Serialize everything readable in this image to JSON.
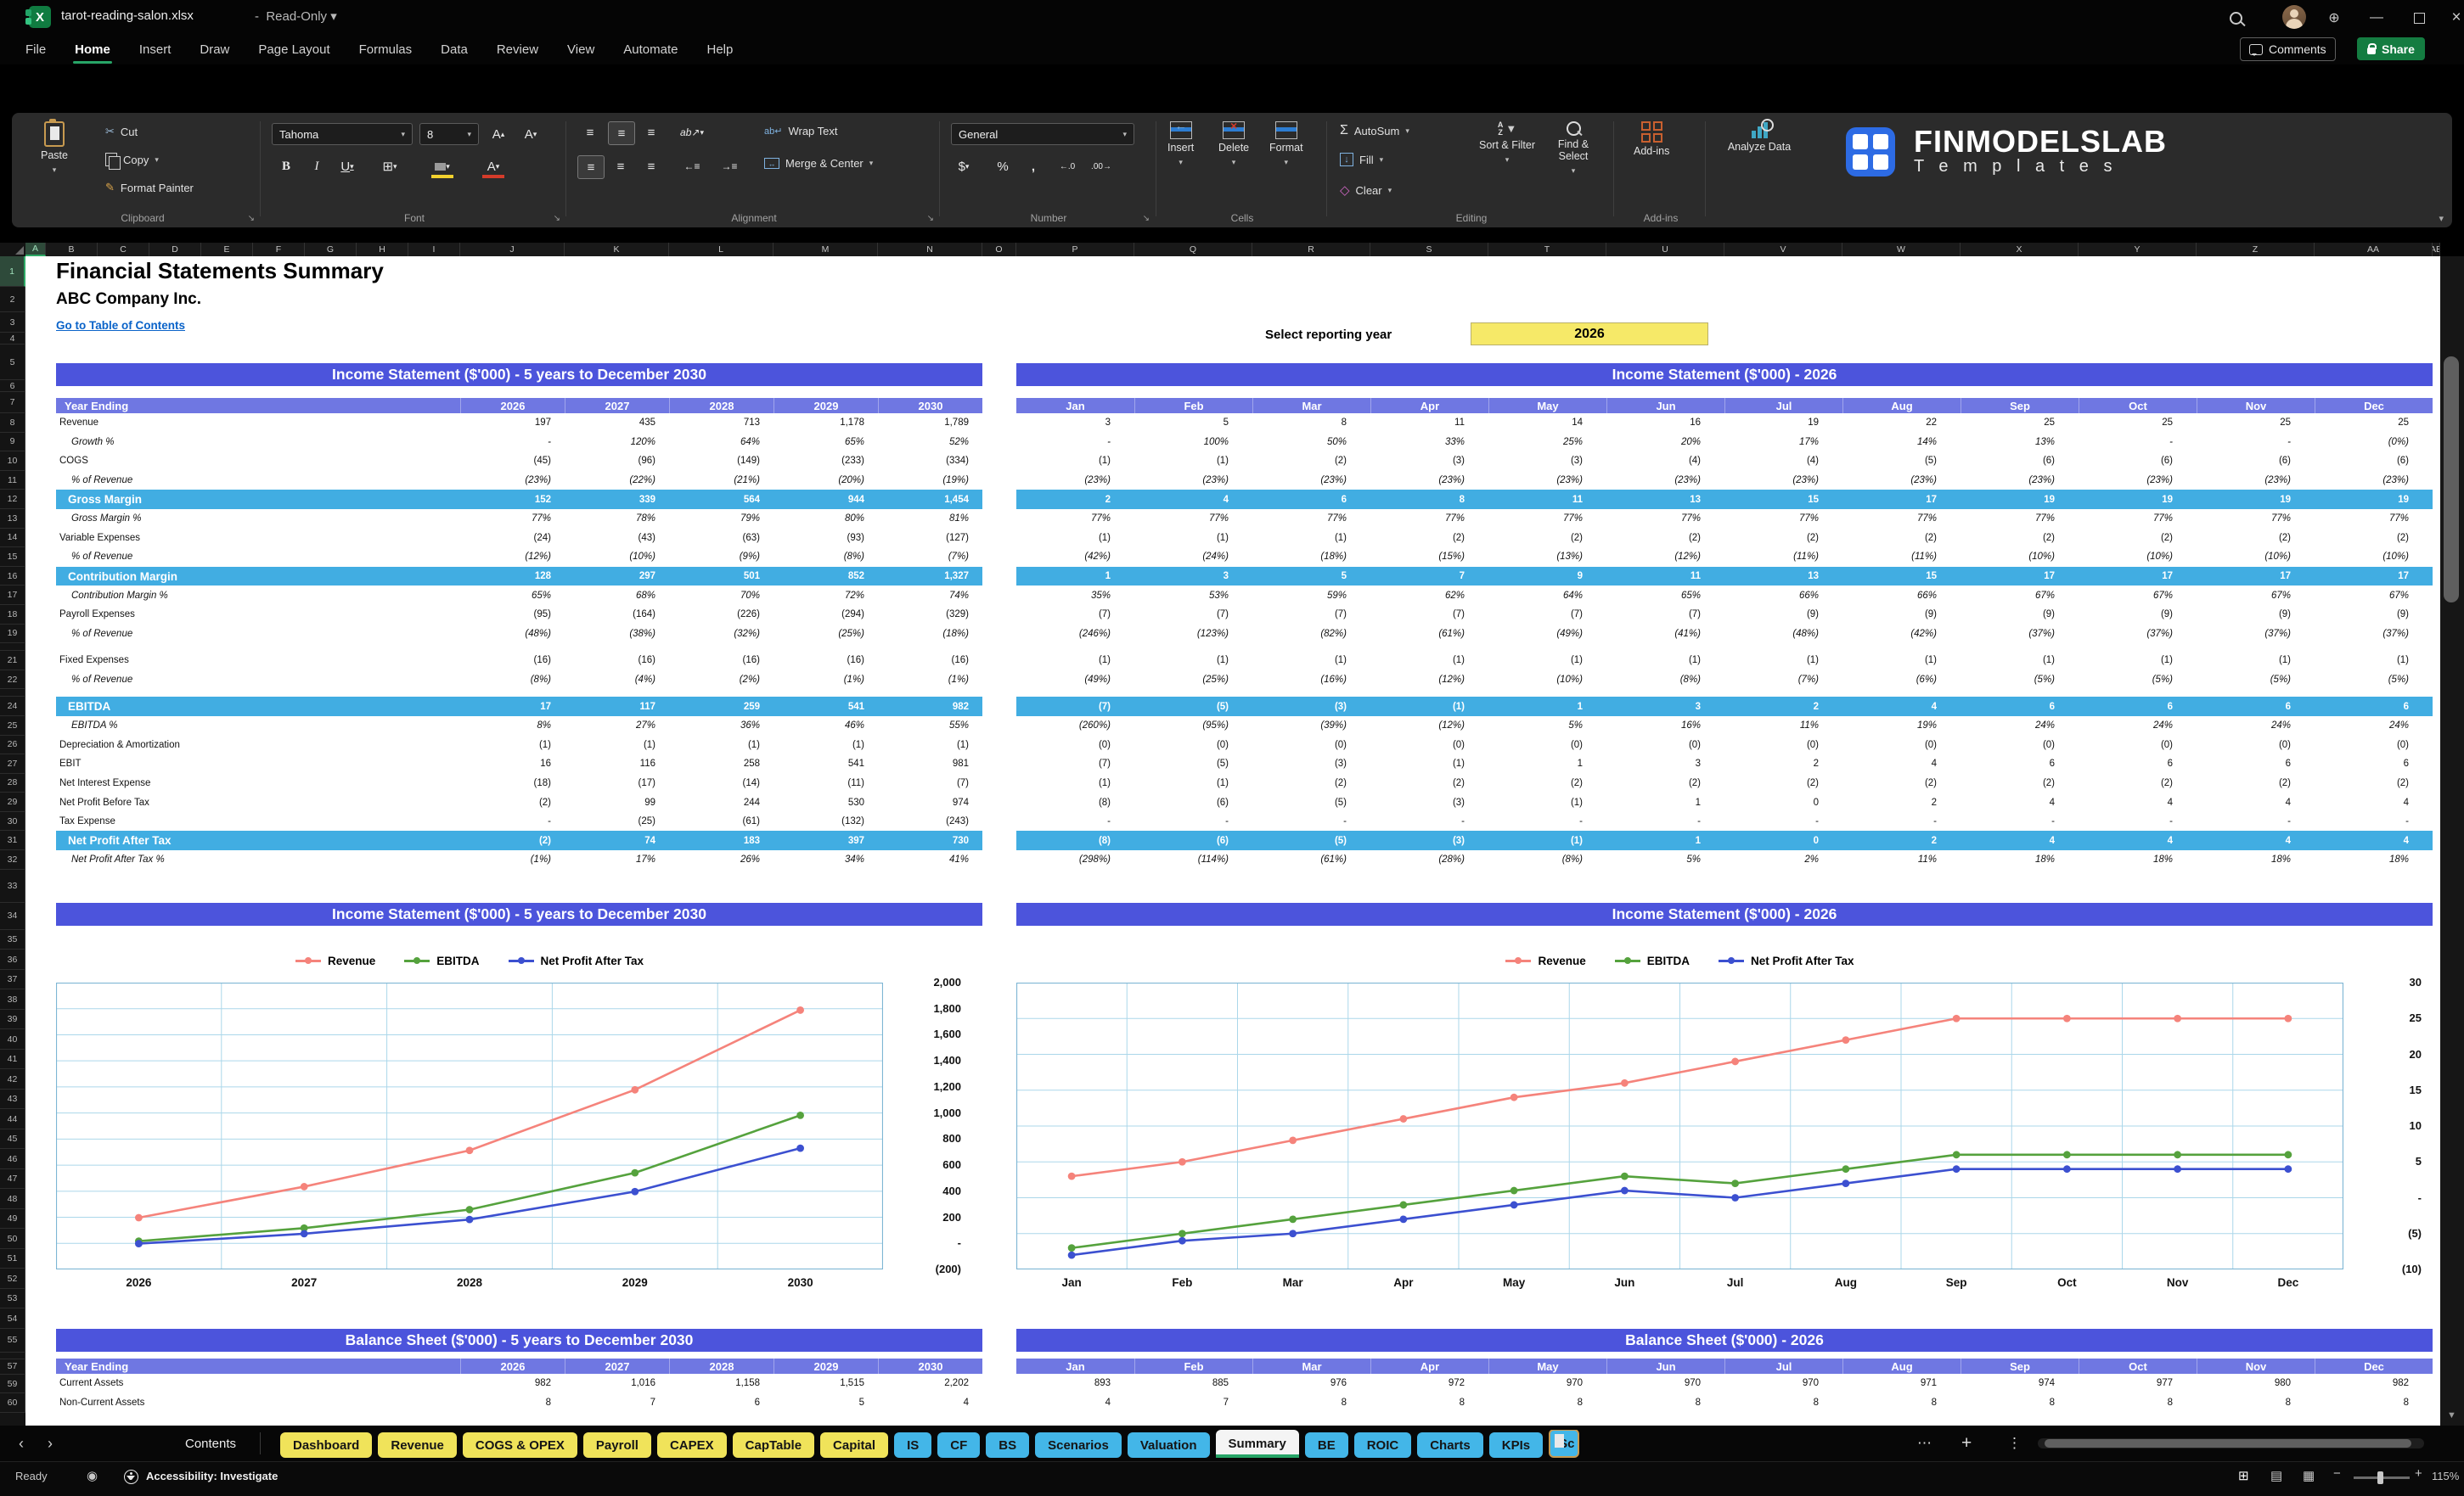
{
  "colors": {
    "banner": "#4C54DC",
    "header": "#6F77E2",
    "band": "#41ADE2",
    "yellow": "#F6E968",
    "tab_yellow": "#F0E35A",
    "tab_blue": "#43B6E8",
    "link": "#0A63C9",
    "green": "#27A567",
    "revenue": "#F5837B",
    "ebitda": "#55A23D",
    "npat": "#3C50D0",
    "chart_grid": "#ABD7EA",
    "chart_border": "#7EB6D4"
  },
  "titlebar": {
    "filename": "tarot-reading-salon.xlsx",
    "separator": "-",
    "mode": "Read-Only"
  },
  "menu": {
    "items": [
      "File",
      "Home",
      "Insert",
      "Draw",
      "Page Layout",
      "Formulas",
      "Data",
      "Review",
      "View",
      "Automate",
      "Help"
    ],
    "active": "Home",
    "comments_label": "Comments",
    "share_label": "Share"
  },
  "ribbon": {
    "paste": "Paste",
    "cut": "Cut",
    "copy": "Copy",
    "format_painter": "Format Painter",
    "clipboard_group": "Clipboard",
    "font_name": "Tahoma",
    "font_size": "8",
    "font_group": "Font",
    "wrap_text": "Wrap Text",
    "merge_center": "Merge & Center",
    "alignment_group": "Alignment",
    "number_format": "General",
    "number_group": "Number",
    "insert": "Insert",
    "delete": "Delete",
    "format": "Format",
    "cells_group": "Cells",
    "autosum": "AutoSum",
    "fill": "Fill",
    "clear": "Clear",
    "sort_filter": "Sort & Filter",
    "find_select": "Find & Select",
    "editing_group": "Editing",
    "addins": "Add-ins",
    "addins_group": "Add-ins",
    "analyze": "Analyze Data"
  },
  "logo": {
    "name": "FINMODELSLAB",
    "sub": "T e m p l a t e s"
  },
  "sheet": {
    "title": "Financial Statements Summary",
    "company": "ABC Company Inc.",
    "link": "Go to Table of Contents",
    "select_year_label": "Select reporting year",
    "selected_year": "2026",
    "columns": [
      "A",
      "B",
      "C",
      "D",
      "E",
      "F",
      "G",
      "H",
      "I",
      "J",
      "K",
      "L",
      "M",
      "N",
      "O",
      "P",
      "Q",
      "R",
      "S",
      "T",
      "U",
      "V",
      "W",
      "X",
      "Y",
      "Z",
      "AA",
      "AB"
    ]
  },
  "income_statement": {
    "annual_banner": "Income Statement ($'000) - 5 years to December 2030",
    "monthly_banner": "Income Statement ($'000) - 2026",
    "header_label": "Year Ending",
    "years": [
      "2026",
      "2027",
      "2028",
      "2029",
      "2030"
    ],
    "months": [
      "Jan",
      "Feb",
      "Mar",
      "Apr",
      "May",
      "Jun",
      "Jul",
      "Aug",
      "Sep",
      "Oct",
      "Nov",
      "Dec"
    ],
    "rows": [
      {
        "label": "Revenue",
        "style": "n",
        "annual": [
          "197",
          "435",
          "713",
          "1,178",
          "1,789"
        ],
        "monthly": [
          "3",
          "5",
          "8",
          "11",
          "14",
          "16",
          "19",
          "22",
          "25",
          "25",
          "25",
          "25"
        ]
      },
      {
        "label": "Growth %",
        "style": "i",
        "annual": [
          "-",
          "120%",
          "64%",
          "65%",
          "52%"
        ],
        "monthly": [
          "-",
          "100%",
          "50%",
          "33%",
          "25%",
          "20%",
          "17%",
          "14%",
          "13%",
          "-",
          "-",
          "(0%)"
        ]
      },
      {
        "label": "COGS",
        "style": "n",
        "annual": [
          "(45)",
          "(96)",
          "(149)",
          "(233)",
          "(334)"
        ],
        "monthly": [
          "(1)",
          "(1)",
          "(2)",
          "(3)",
          "(3)",
          "(4)",
          "(4)",
          "(5)",
          "(6)",
          "(6)",
          "(6)",
          "(6)"
        ]
      },
      {
        "label": "% of Revenue",
        "style": "i",
        "annual": [
          "(23%)",
          "(22%)",
          "(21%)",
          "(20%)",
          "(19%)"
        ],
        "monthly": [
          "(23%)",
          "(23%)",
          "(23%)",
          "(23%)",
          "(23%)",
          "(23%)",
          "(23%)",
          "(23%)",
          "(23%)",
          "(23%)",
          "(23%)",
          "(23%)"
        ]
      },
      {
        "label": "Gross Margin",
        "style": "b",
        "annual": [
          "152",
          "339",
          "564",
          "944",
          "1,454"
        ],
        "monthly": [
          "2",
          "4",
          "6",
          "8",
          "11",
          "13",
          "15",
          "17",
          "19",
          "19",
          "19",
          "19"
        ]
      },
      {
        "label": "Gross Margin %",
        "style": "i",
        "annual": [
          "77%",
          "78%",
          "79%",
          "80%",
          "81%"
        ],
        "monthly": [
          "77%",
          "77%",
          "77%",
          "77%",
          "77%",
          "77%",
          "77%",
          "77%",
          "77%",
          "77%",
          "77%",
          "77%"
        ]
      },
      {
        "label": "Variable Expenses",
        "style": "n",
        "annual": [
          "(24)",
          "(43)",
          "(63)",
          "(93)",
          "(127)"
        ],
        "monthly": [
          "(1)",
          "(1)",
          "(1)",
          "(2)",
          "(2)",
          "(2)",
          "(2)",
          "(2)",
          "(2)",
          "(2)",
          "(2)",
          "(2)"
        ]
      },
      {
        "label": "% of Revenue",
        "style": "i",
        "annual": [
          "(12%)",
          "(10%)",
          "(9%)",
          "(8%)",
          "(7%)"
        ],
        "monthly": [
          "(42%)",
          "(24%)",
          "(18%)",
          "(15%)",
          "(13%)",
          "(12%)",
          "(11%)",
          "(11%)",
          "(10%)",
          "(10%)",
          "(10%)",
          "(10%)"
        ]
      },
      {
        "label": "Contribution Margin",
        "style": "b",
        "annual": [
          "128",
          "297",
          "501",
          "852",
          "1,327"
        ],
        "monthly": [
          "1",
          "3",
          "5",
          "7",
          "9",
          "11",
          "13",
          "15",
          "17",
          "17",
          "17",
          "17"
        ]
      },
      {
        "label": "Contribution Margin %",
        "style": "i",
        "annual": [
          "65%",
          "68%",
          "70%",
          "72%",
          "74%"
        ],
        "monthly": [
          "35%",
          "53%",
          "59%",
          "62%",
          "64%",
          "65%",
          "66%",
          "66%",
          "67%",
          "67%",
          "67%",
          "67%"
        ]
      },
      {
        "label": "Payroll Expenses",
        "style": "n",
        "annual": [
          "(95)",
          "(164)",
          "(226)",
          "(294)",
          "(329)"
        ],
        "monthly": [
          "(7)",
          "(7)",
          "(7)",
          "(7)",
          "(7)",
          "(7)",
          "(9)",
          "(9)",
          "(9)",
          "(9)",
          "(9)",
          "(9)"
        ]
      },
      {
        "label": "% of Revenue",
        "style": "i",
        "annual": [
          "(48%)",
          "(38%)",
          "(32%)",
          "(25%)",
          "(18%)"
        ],
        "monthly": [
          "(246%)",
          "(123%)",
          "(82%)",
          "(61%)",
          "(49%)",
          "(41%)",
          "(48%)",
          "(42%)",
          "(37%)",
          "(37%)",
          "(37%)",
          "(37%)"
        ]
      },
      {
        "style": "s"
      },
      {
        "label": "Fixed Expenses",
        "style": "n",
        "annual": [
          "(16)",
          "(16)",
          "(16)",
          "(16)",
          "(16)"
        ],
        "monthly": [
          "(1)",
          "(1)",
          "(1)",
          "(1)",
          "(1)",
          "(1)",
          "(1)",
          "(1)",
          "(1)",
          "(1)",
          "(1)",
          "(1)"
        ]
      },
      {
        "label": "% of Revenue",
        "style": "i",
        "annual": [
          "(8%)",
          "(4%)",
          "(2%)",
          "(1%)",
          "(1%)"
        ],
        "monthly": [
          "(49%)",
          "(25%)",
          "(16%)",
          "(12%)",
          "(10%)",
          "(8%)",
          "(7%)",
          "(6%)",
          "(5%)",
          "(5%)",
          "(5%)",
          "(5%)"
        ]
      },
      {
        "style": "s"
      },
      {
        "label": "EBITDA",
        "style": "b",
        "annual": [
          "17",
          "117",
          "259",
          "541",
          "982"
        ],
        "monthly": [
          "(7)",
          "(5)",
          "(3)",
          "(1)",
          "1",
          "3",
          "2",
          "4",
          "6",
          "6",
          "6",
          "6"
        ]
      },
      {
        "label": "EBITDA %",
        "style": "i",
        "annual": [
          "8%",
          "27%",
          "36%",
          "46%",
          "55%"
        ],
        "monthly": [
          "(260%)",
          "(95%)",
          "(39%)",
          "(12%)",
          "5%",
          "16%",
          "11%",
          "19%",
          "24%",
          "24%",
          "24%",
          "24%"
        ]
      },
      {
        "label": "Depreciation & Amortization",
        "style": "n",
        "annual": [
          "(1)",
          "(1)",
          "(1)",
          "(1)",
          "(1)"
        ],
        "monthly": [
          "(0)",
          "(0)",
          "(0)",
          "(0)",
          "(0)",
          "(0)",
          "(0)",
          "(0)",
          "(0)",
          "(0)",
          "(0)",
          "(0)"
        ]
      },
      {
        "label": "EBIT",
        "style": "n",
        "annual": [
          "16",
          "116",
          "258",
          "541",
          "981"
        ],
        "monthly": [
          "(7)",
          "(5)",
          "(3)",
          "(1)",
          "1",
          "3",
          "2",
          "4",
          "6",
          "6",
          "6",
          "6"
        ]
      },
      {
        "label": "Net Interest Expense",
        "style": "n",
        "annual": [
          "(18)",
          "(17)",
          "(14)",
          "(11)",
          "(7)"
        ],
        "monthly": [
          "(1)",
          "(1)",
          "(2)",
          "(2)",
          "(2)",
          "(2)",
          "(2)",
          "(2)",
          "(2)",
          "(2)",
          "(2)",
          "(2)"
        ]
      },
      {
        "label": "Net Profit Before Tax",
        "style": "n",
        "annual": [
          "(2)",
          "99",
          "244",
          "530",
          "974"
        ],
        "monthly": [
          "(8)",
          "(6)",
          "(5)",
          "(3)",
          "(1)",
          "1",
          "0",
          "2",
          "4",
          "4",
          "4",
          "4"
        ]
      },
      {
        "label": "Tax Expense",
        "style": "n",
        "annual": [
          "-",
          "(25)",
          "(61)",
          "(132)",
          "(243)"
        ],
        "monthly": [
          "-",
          "-",
          "-",
          "-",
          "-",
          "-",
          "-",
          "-",
          "-",
          "-",
          "-",
          "-"
        ]
      },
      {
        "label": "Net Profit After Tax",
        "style": "b",
        "annual": [
          "(2)",
          "74",
          "183",
          "397",
          "730"
        ],
        "monthly": [
          "(8)",
          "(6)",
          "(5)",
          "(3)",
          "(1)",
          "1",
          "0",
          "2",
          "4",
          "4",
          "4",
          "4"
        ]
      },
      {
        "label": "Net Profit After Tax %",
        "style": "i",
        "annual": [
          "(1%)",
          "17%",
          "26%",
          "34%",
          "41%"
        ],
        "monthly": [
          "(298%)",
          "(114%)",
          "(61%)",
          "(28%)",
          "(8%)",
          "5%",
          "2%",
          "11%",
          "18%",
          "18%",
          "18%",
          "18%"
        ]
      }
    ]
  },
  "charts": {
    "legend": [
      "Revenue",
      "EBITDA",
      "Net Profit After Tax"
    ],
    "annual_yticks": [
      "2,000",
      "1,800",
      "1,600",
      "1,400",
      "1,200",
      "1,000",
      "800",
      "600",
      "400",
      "200",
      "-",
      "(200)"
    ],
    "monthly_yticks": [
      "30",
      "25",
      "20",
      "15",
      "10",
      "5",
      "-",
      "(5)",
      "(10)"
    ]
  },
  "chart_data": [
    {
      "type": "line",
      "title": "Income Statement ($'000) - 5 years to December 2030",
      "x": [
        "2026",
        "2027",
        "2028",
        "2029",
        "2030"
      ],
      "series": [
        {
          "name": "Revenue",
          "values": [
            197,
            435,
            713,
            1178,
            1789
          ]
        },
        {
          "name": "EBITDA",
          "values": [
            17,
            117,
            259,
            541,
            982
          ]
        },
        {
          "name": "Net Profit After Tax",
          "values": [
            -2,
            74,
            183,
            397,
            730
          ]
        }
      ],
      "ylim": [
        -200,
        2000
      ],
      "ytick_step": 200,
      "legend_position": "top",
      "grid": true
    },
    {
      "type": "line",
      "title": "Income Statement ($'000) - 2026",
      "x": [
        "Jan",
        "Feb",
        "Mar",
        "Apr",
        "May",
        "Jun",
        "Jul",
        "Aug",
        "Sep",
        "Oct",
        "Nov",
        "Dec"
      ],
      "series": [
        {
          "name": "Revenue",
          "values": [
            3,
            5,
            8,
            11,
            14,
            16,
            19,
            22,
            25,
            25,
            25,
            25
          ]
        },
        {
          "name": "EBITDA",
          "values": [
            -7,
            -5,
            -3,
            -1,
            1,
            3,
            2,
            4,
            6,
            6,
            6,
            6
          ]
        },
        {
          "name": "Net Profit After Tax",
          "values": [
            -8,
            -6,
            -5,
            -3,
            -1,
            1,
            0,
            2,
            4,
            4,
            4,
            4
          ]
        }
      ],
      "ylim": [
        -10,
        30
      ],
      "ytick_step": 5,
      "legend_position": "top",
      "grid": true
    }
  ],
  "balance_sheet": {
    "annual_banner": "Balance Sheet ($'000) - 5 years to December 2030",
    "monthly_banner": "Balance Sheet ($'000) - 2026",
    "header_label": "Year Ending",
    "rows": [
      {
        "label": "Current Assets",
        "style": "n",
        "annual": [
          "982",
          "1,016",
          "1,158",
          "1,515",
          "2,202"
        ],
        "monthly": [
          "893",
          "885",
          "976",
          "972",
          "970",
          "970",
          "970",
          "971",
          "974",
          "977",
          "980",
          "982"
        ]
      },
      {
        "label": "Non-Current Assets",
        "style": "n",
        "annual": [
          "8",
          "7",
          "6",
          "5",
          "4"
        ],
        "monthly": [
          "4",
          "7",
          "8",
          "8",
          "8",
          "8",
          "8",
          "8",
          "8",
          "8",
          "8",
          "8"
        ]
      }
    ]
  },
  "tabs": {
    "contents": "Contents",
    "items": [
      {
        "label": "Dashboard",
        "color": "yellow"
      },
      {
        "label": "Revenue",
        "color": "yellow"
      },
      {
        "label": "COGS & OPEX",
        "color": "yellow"
      },
      {
        "label": "Payroll",
        "color": "yellow"
      },
      {
        "label": "CAPEX",
        "color": "yellow"
      },
      {
        "label": "CapTable",
        "color": "yellow"
      },
      {
        "label": "Capital",
        "color": "yellow"
      },
      {
        "label": "IS",
        "color": "blue"
      },
      {
        "label": "CF",
        "color": "blue"
      },
      {
        "label": "BS",
        "color": "blue"
      },
      {
        "label": "Scenarios",
        "color": "blue"
      },
      {
        "label": "Valuation",
        "color": "blue"
      },
      {
        "label": "Summary",
        "color": "active"
      },
      {
        "label": "BE",
        "color": "blue"
      },
      {
        "label": "ROIC",
        "color": "blue"
      },
      {
        "label": "Charts",
        "color": "blue"
      },
      {
        "label": "KPIs",
        "color": "blue"
      },
      {
        "label": "Sc",
        "color": "blue",
        "clipped": true
      }
    ]
  },
  "statusbar": {
    "ready": "Ready",
    "accessibility": "Accessibility: Investigate",
    "zoom": "115%"
  }
}
